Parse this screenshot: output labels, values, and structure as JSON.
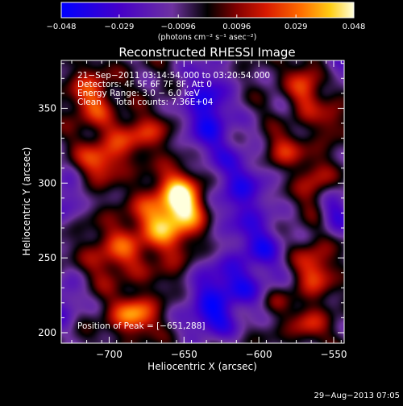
{
  "chart_data": {
    "type": "heatmap",
    "title": "Reconstructed RHESSI Image",
    "xlabel": "Heliocentric X (arcsec)",
    "ylabel": "Heliocentric Y (arcsec)",
    "xlim": [
      -732,
      -543
    ],
    "ylim": [
      193,
      382
    ],
    "x_ticks": [
      -700,
      -650,
      -600,
      -550
    ],
    "x_tick_labels": [
      "−700",
      "−650",
      "−600",
      "−550"
    ],
    "y_ticks": [
      200,
      250,
      300,
      350
    ],
    "y_tick_labels": [
      "200",
      "250",
      "300",
      "350"
    ],
    "colorbar": {
      "min": -0.048,
      "max": 0.048,
      "ticks": [
        -0.048,
        -0.029,
        -0.0096,
        0.0096,
        0.029,
        0.048
      ],
      "tick_labels": [
        "−0.048",
        "−0.029",
        "−0.0096",
        "0.0096",
        "0.029",
        "0.048"
      ],
      "unit_label": "(photons cm⁻² s⁻¹ asec⁻²)"
    },
    "info_lines": [
      "21−Sep−2011 03:14:54.000 to 03:20:54.000",
      "Detectors: 4F 5F 6F 7F 8F, Att 0",
      "Energy Range: 3.0 − 6.0 keV",
      "Clean     Total counts: 7.36E+04"
    ],
    "peak_label": "Position of Peak = [−651,288]",
    "peak": {
      "x": -651,
      "y": 288
    },
    "sources": [
      {
        "x": -651,
        "y": 288,
        "amp": 0.05,
        "sx": 11,
        "sy": 15
      },
      {
        "x": -668,
        "y": 272,
        "amp": 0.03,
        "sx": 14,
        "sy": 16
      },
      {
        "x": -705,
        "y": 315,
        "amp": 0.03,
        "sx": 11,
        "sy": 9
      },
      {
        "x": -712,
        "y": 357,
        "amp": 0.028,
        "sx": 10,
        "sy": 14
      },
      {
        "x": -680,
        "y": 333,
        "amp": 0.024,
        "sx": 15,
        "sy": 9
      },
      {
        "x": -683,
        "y": 212,
        "amp": 0.038,
        "sx": 11,
        "sy": 9
      },
      {
        "x": -697,
        "y": 252,
        "amp": 0.024,
        "sx": 12,
        "sy": 13
      },
      {
        "x": -655,
        "y": 236,
        "amp": 0.016,
        "sx": 11,
        "sy": 10
      },
      {
        "x": -568,
        "y": 365,
        "amp": 0.026,
        "sx": 8,
        "sy": 14
      },
      {
        "x": -585,
        "y": 322,
        "amp": 0.024,
        "sx": 10,
        "sy": 8
      },
      {
        "x": -562,
        "y": 300,
        "amp": 0.02,
        "sx": 9,
        "sy": 12
      },
      {
        "x": -563,
        "y": 242,
        "amp": 0.028,
        "sx": 9,
        "sy": 13
      },
      {
        "x": -567,
        "y": 205,
        "amp": 0.02,
        "sx": 9,
        "sy": 8
      },
      {
        "x": -588,
        "y": 220,
        "amp": 0.014,
        "sx": 8,
        "sy": 7
      },
      {
        "x": -552,
        "y": 342,
        "amp": 0.016,
        "sx": 7,
        "sy": 9
      },
      {
        "x": -635,
        "y": 348,
        "amp": -0.036,
        "sx": 12,
        "sy": 24
      },
      {
        "x": -612,
        "y": 295,
        "amp": -0.03,
        "sx": 14,
        "sy": 22
      },
      {
        "x": -625,
        "y": 230,
        "amp": -0.036,
        "sx": 22,
        "sy": 13
      },
      {
        "x": -598,
        "y": 258,
        "amp": -0.026,
        "sx": 11,
        "sy": 12
      },
      {
        "x": -548,
        "y": 282,
        "amp": -0.026,
        "sx": 8,
        "sy": 12
      },
      {
        "x": -632,
        "y": 207,
        "amp": -0.03,
        "sx": 12,
        "sy": 8
      },
      {
        "x": -730,
        "y": 290,
        "amp": -0.022,
        "sx": 8,
        "sy": 12
      },
      {
        "x": -730,
        "y": 220,
        "amp": -0.024,
        "sx": 8,
        "sy": 12
      },
      {
        "x": -548,
        "y": 378,
        "amp": -0.02,
        "sx": 8,
        "sy": 8
      }
    ]
  },
  "footer": {
    "timestamp": "29−Aug−2013 07:05"
  }
}
